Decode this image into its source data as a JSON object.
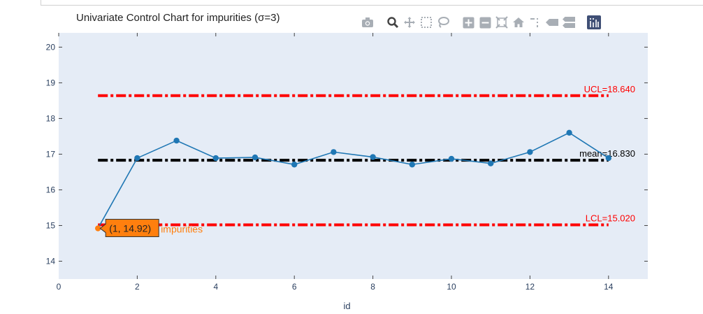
{
  "title": "Univariate Control Chart for impurities (σ=3)",
  "modebar": {
    "buttons": [
      "camera-icon",
      "zoom-icon",
      "pan-icon",
      "box-select-icon",
      "lasso-select-icon",
      "zoom-in-icon",
      "zoom-out-icon",
      "autoscale-icon",
      "reset-axes-icon",
      "spike-lines-icon",
      "hover-closest-icon",
      "hover-compare-icon",
      "plotly-logo-icon"
    ]
  },
  "colors": {
    "plot_bg": "#e5ecf6",
    "series": "#1f77b4",
    "limit": "#ff0000",
    "mean": "#000000",
    "highlight": "#ff7f0e"
  },
  "chart_data": {
    "type": "line",
    "title": "Univariate Control Chart for impurities (σ=3)",
    "xlabel": "id",
    "ylabel": "",
    "xlim": [
      0,
      15
    ],
    "ylim": [
      13.5,
      20.4
    ],
    "xticks": [
      0,
      2,
      4,
      6,
      8,
      10,
      12,
      14
    ],
    "yticks": [
      14,
      15,
      16,
      17,
      18,
      19,
      20
    ],
    "grid": false,
    "series": [
      {
        "name": "impurities",
        "x": [
          1,
          2,
          3,
          4,
          5,
          6,
          7,
          8,
          9,
          10,
          11,
          12,
          13,
          14
        ],
        "values": [
          14.92,
          16.89,
          17.38,
          16.89,
          16.91,
          16.71,
          17.06,
          16.92,
          16.71,
          16.87,
          16.74,
          17.06,
          17.6,
          16.89
        ]
      }
    ],
    "reference_lines": [
      {
        "label": "UCL=18.640",
        "y": 18.64,
        "x_range": [
          1,
          14
        ],
        "style": "dashdot",
        "color": "#ff0000"
      },
      {
        "label": "mean=16.830",
        "y": 16.83,
        "x_range": [
          1,
          14
        ],
        "style": "dashdot",
        "color": "#000000"
      },
      {
        "label": "LCL=15.020",
        "y": 15.02,
        "x_range": [
          1,
          14
        ],
        "style": "dashdot",
        "color": "#ff0000"
      }
    ],
    "hover": {
      "point_index": 0,
      "text": "(1, 14.92)",
      "series_label": "impurities"
    }
  }
}
